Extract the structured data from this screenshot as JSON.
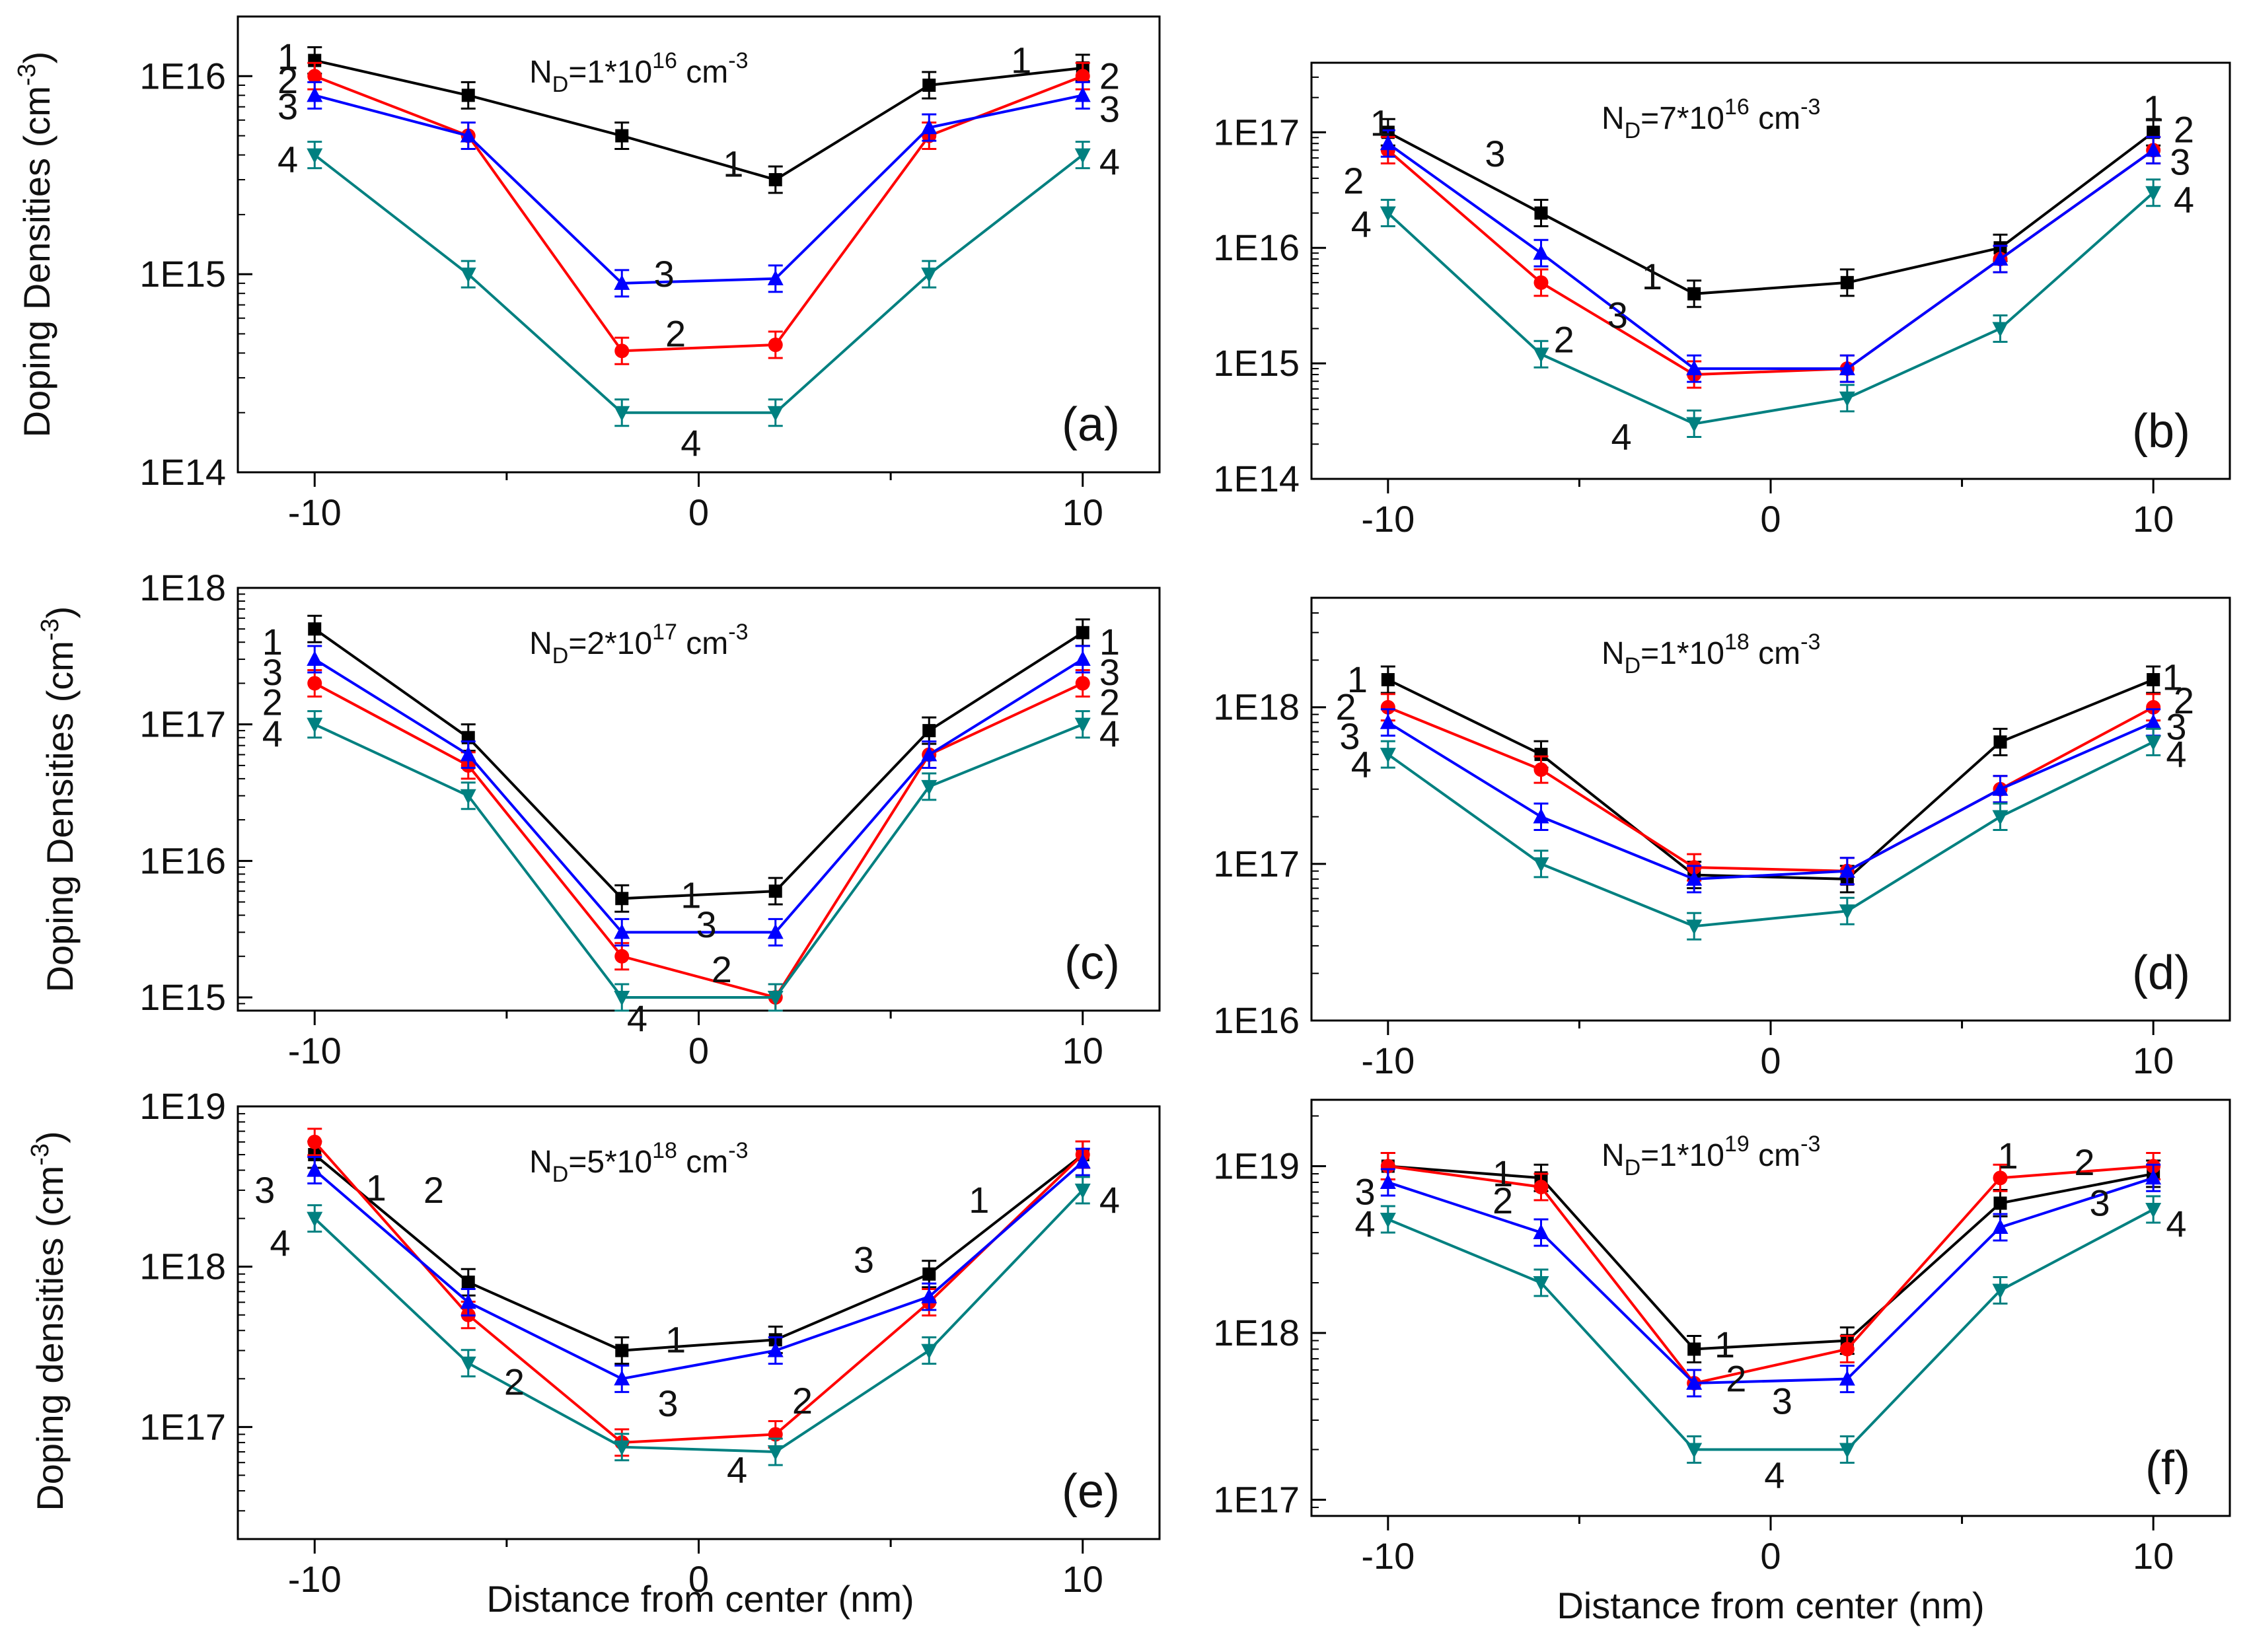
{
  "colors": {
    "1": "#000000",
    "2": "#ff0000",
    "3": "#0000ff",
    "4": "#008080"
  },
  "markers": {
    "1": "square",
    "2": "circle",
    "3": "triangle-up",
    "4": "triangle-down"
  },
  "x_axis_title": "Distance from center (nm)",
  "chart_data": [
    {
      "type": "line",
      "panel_label": "(a)",
      "annotation": {
        "base": "N",
        "sub": "D",
        "eq": "=1*10",
        "exp": "16",
        "unit": " cm",
        "unit_exp": "-3"
      },
      "ylabel": {
        "text": "Doping Densities (cm",
        "exp": "-3",
        "close": ")"
      },
      "yscale": "log",
      "ylim": [
        100000000000000.0,
        2e+16
      ],
      "yticks": [
        {
          "v": 100000000000000.0,
          "label": "1E14"
        },
        {
          "v": 1000000000000000.0,
          "label": "1E15"
        },
        {
          "v": 1e+16,
          "label": "1E16"
        }
      ],
      "xlim": [
        -12,
        12
      ],
      "xticks": [
        {
          "v": -10,
          "label": "-10"
        },
        {
          "v": 0,
          "label": "0"
        },
        {
          "v": 10,
          "label": "10"
        }
      ],
      "x": [
        -10,
        -6,
        -2,
        2,
        6,
        10
      ],
      "series": [
        {
          "name": "1",
          "values": [
            1.2e+16,
            8000000000000000.0,
            5000000000000000.0,
            3000000000000000.0,
            9000000000000000.0,
            1.1e+16
          ]
        },
        {
          "name": "2",
          "values": [
            1e+16,
            5000000000000000.0,
            410000000000000.0,
            440000000000000.0,
            5000000000000000.0,
            1e+16
          ]
        },
        {
          "name": "3",
          "values": [
            8000000000000000.0,
            5000000000000000.0,
            900000000000000.0,
            950000000000000.0,
            5500000000000000.0,
            8000000000000000.0
          ]
        },
        {
          "name": "4",
          "values": [
            4000000000000000.0,
            1000000000000000.0,
            200000000000000.0,
            200000000000000.0,
            1000000000000000.0,
            4000000000000000.0
          ]
        }
      ],
      "labels": [
        {
          "t": "1",
          "x": -10.7,
          "y": 1.25e+16,
          "c": "1"
        },
        {
          "t": "2",
          "x": -10.7,
          "y": 9500000000000000.0,
          "c": "2"
        },
        {
          "t": "3",
          "x": -10.7,
          "y": 7000000000000000.0,
          "c": "3"
        },
        {
          "t": "4",
          "x": -10.7,
          "y": 3800000000000000.0,
          "c": "4"
        },
        {
          "t": "1",
          "x": 8.4,
          "y": 1.2e+16,
          "c": "1"
        },
        {
          "t": "2",
          "x": 10.7,
          "y": 1e+16,
          "c": "2"
        },
        {
          "t": "3",
          "x": 10.7,
          "y": 6800000000000000.0,
          "c": "3"
        },
        {
          "t": "4",
          "x": 10.7,
          "y": 3700000000000000.0,
          "c": "4"
        },
        {
          "t": "1",
          "x": 0.9,
          "y": 3600000000000000.0,
          "c": "1"
        },
        {
          "t": "3",
          "x": -0.9,
          "y": 1000000000000000.0,
          "c": "3"
        },
        {
          "t": "2",
          "x": -0.6,
          "y": 500000000000000.0,
          "c": "2"
        },
        {
          "t": "4",
          "x": -0.2,
          "y": 140000000000000.0,
          "c": "4"
        }
      ]
    },
    {
      "type": "line",
      "panel_label": "(b)",
      "annotation": {
        "base": "N",
        "sub": "D",
        "eq": "=7*10",
        "exp": "16",
        "unit": " cm",
        "unit_exp": "-3"
      },
      "ylabel": null,
      "yscale": "log",
      "ylim": [
        100000000000000.0,
        4e+17
      ],
      "yticks": [
        {
          "v": 100000000000000.0,
          "label": "1E14"
        },
        {
          "v": 1000000000000000.0,
          "label": "1E15"
        },
        {
          "v": 1e+16,
          "label": "1E16"
        },
        {
          "v": 1e+17,
          "label": "1E17"
        }
      ],
      "xlim": [
        -12,
        12
      ],
      "xticks": [
        {
          "v": -10,
          "label": "-10"
        },
        {
          "v": 0,
          "label": "0"
        },
        {
          "v": 10,
          "label": "10"
        }
      ],
      "x": [
        -10,
        -6,
        -2,
        2,
        6,
        10
      ],
      "series": [
        {
          "name": "1",
          "values": [
            1e+17,
            2e+16,
            4000000000000000.0,
            5000000000000000.0,
            1e+16,
            1e+17
          ]
        },
        {
          "name": "2",
          "values": [
            7e+16,
            5000000000000000.0,
            800000000000000.0,
            900000000000000.0,
            8000000000000000.0,
            7e+16
          ]
        },
        {
          "name": "3",
          "values": [
            8e+16,
            9000000000000000.0,
            900000000000000.0,
            900000000000000.0,
            8000000000000000.0,
            7e+16
          ]
        },
        {
          "name": "4",
          "values": [
            2e+16,
            1200000000000000.0,
            300000000000000.0,
            500000000000000.0,
            2000000000000000.0,
            3e+16
          ]
        }
      ],
      "labels": [
        {
          "t": "1",
          "x": -10.2,
          "y": 1.2e+17,
          "c": "1"
        },
        {
          "t": "2",
          "x": -10.9,
          "y": 3.8e+16,
          "c": "2"
        },
        {
          "t": "4",
          "x": -10.7,
          "y": 1.6e+16,
          "c": "4"
        },
        {
          "t": "3",
          "x": -7.2,
          "y": 6.5e+16,
          "c": "3"
        },
        {
          "t": "1",
          "x": -3.1,
          "y": 5600000000000000.0,
          "c": "1"
        },
        {
          "t": "3",
          "x": -4.0,
          "y": 2600000000000000.0,
          "c": "3"
        },
        {
          "t": "2",
          "x": -5.4,
          "y": 1600000000000000.0,
          "c": "2"
        },
        {
          "t": "4",
          "x": -3.9,
          "y": 230000000000000.0,
          "c": "4"
        },
        {
          "t": "1",
          "x": 10.0,
          "y": 1.6e+17,
          "c": "1"
        },
        {
          "t": "2",
          "x": 10.8,
          "y": 1.05e+17,
          "c": "2"
        },
        {
          "t": "3",
          "x": 10.7,
          "y": 5.5e+16,
          "c": "3"
        },
        {
          "t": "4",
          "x": 10.8,
          "y": 2.6e+16,
          "c": "4"
        }
      ]
    },
    {
      "type": "line",
      "panel_label": "(c)",
      "annotation": {
        "base": "N",
        "sub": "D",
        "eq": "=2*10",
        "exp": "17",
        "unit": " cm",
        "unit_exp": "-3"
      },
      "ylabel": {
        "text": "Doping Densities (cm",
        "exp": "-3",
        "close": ")"
      },
      "yscale": "log",
      "ylim": [
        800000000000000.0,
        1e+18
      ],
      "yticks": [
        {
          "v": 1000000000000000.0,
          "label": "1E15"
        },
        {
          "v": 1e+16,
          "label": "1E16"
        },
        {
          "v": 1e+17,
          "label": "1E17"
        },
        {
          "v": 1e+18,
          "label": "1E18"
        }
      ],
      "xlim": [
        -12,
        12
      ],
      "xticks": [
        {
          "v": -10,
          "label": "-10"
        },
        {
          "v": 0,
          "label": "0"
        },
        {
          "v": 10,
          "label": "10"
        }
      ],
      "x": [
        -10,
        -6,
        -2,
        2,
        6,
        10
      ],
      "series": [
        {
          "name": "1",
          "values": [
            5e+17,
            8e+16,
            5300000000000000.0,
            6000000000000000.0,
            9e+16,
            4.7e+17
          ]
        },
        {
          "name": "2",
          "values": [
            2e+17,
            5e+16,
            2000000000000000.0,
            1000000000000000.0,
            6e+16,
            2e+17
          ]
        },
        {
          "name": "3",
          "values": [
            3e+17,
            6e+16,
            3000000000000000.0,
            3000000000000000.0,
            6e+16,
            3e+17
          ]
        },
        {
          "name": "4",
          "values": [
            1e+17,
            3e+16,
            1000000000000000.0,
            1000000000000000.0,
            3.5e+16,
            1e+17
          ]
        }
      ],
      "labels": [
        {
          "t": "1",
          "x": -11.1,
          "y": 4e+17,
          "c": "1"
        },
        {
          "t": "3",
          "x": -11.1,
          "y": 2.4e+17,
          "c": "3"
        },
        {
          "t": "2",
          "x": -11.1,
          "y": 1.45e+17,
          "c": "2"
        },
        {
          "t": "4",
          "x": -11.1,
          "y": 8.5e+16,
          "c": "4"
        },
        {
          "t": "1",
          "x": 10.7,
          "y": 4e+17,
          "c": "1"
        },
        {
          "t": "3",
          "x": 10.7,
          "y": 2.4e+17,
          "c": "3"
        },
        {
          "t": "2",
          "x": 10.7,
          "y": 1.45e+17,
          "c": "2"
        },
        {
          "t": "4",
          "x": 10.7,
          "y": 8.5e+16,
          "c": "4"
        },
        {
          "t": "1",
          "x": -0.2,
          "y": 5600000000000000.0,
          "c": "1"
        },
        {
          "t": "3",
          "x": 0.2,
          "y": 3400000000000000.0,
          "c": "3"
        },
        {
          "t": "2",
          "x": 0.6,
          "y": 1600000000000000.0,
          "c": "2"
        },
        {
          "t": "4",
          "x": -1.6,
          "y": 700000000000000.0,
          "c": "4"
        }
      ]
    },
    {
      "type": "line",
      "panel_label": "(d)",
      "annotation": {
        "base": "N",
        "sub": "D",
        "eq": "=1*10",
        "exp": "18",
        "unit": " cm",
        "unit_exp": "-3"
      },
      "ylabel": null,
      "yscale": "log",
      "ylim": [
        1e+16,
        5e+18
      ],
      "yticks": [
        {
          "v": 1e+16,
          "label": "1E16"
        },
        {
          "v": 1e+17,
          "label": "1E17"
        },
        {
          "v": 1e+18,
          "label": "1E18"
        }
      ],
      "xlim": [
        -12,
        12
      ],
      "xticks": [
        {
          "v": -10,
          "label": "-10"
        },
        {
          "v": 0,
          "label": "0"
        },
        {
          "v": 10,
          "label": "10"
        }
      ],
      "x": [
        -10,
        -6,
        -2,
        2,
        6,
        10
      ],
      "series": [
        {
          "name": "1",
          "values": [
            1.5e+18,
            5e+17,
            8.5e+16,
            8e+16,
            6e+17,
            1.5e+18
          ]
        },
        {
          "name": "2",
          "values": [
            1e+18,
            4e+17,
            9.5e+16,
            9e+16,
            3e+17,
            1e+18
          ]
        },
        {
          "name": "3",
          "values": [
            8e+17,
            2e+17,
            8e+16,
            9e+16,
            3e+17,
            8e+17
          ]
        },
        {
          "name": "4",
          "values": [
            5e+17,
            1e+17,
            4e+16,
            5e+16,
            2e+17,
            6e+17
          ]
        }
      ],
      "labels": [
        {
          "t": "1",
          "x": -10.8,
          "y": 1.5e+18,
          "c": "1"
        },
        {
          "t": "2",
          "x": -11.1,
          "y": 1e+18,
          "c": "2"
        },
        {
          "t": "3",
          "x": -11.0,
          "y": 6.5e+17,
          "c": "3"
        },
        {
          "t": "4",
          "x": -10.7,
          "y": 4.3e+17,
          "c": "4"
        },
        {
          "t": "1",
          "x": 10.5,
          "y": 1.55e+18,
          "c": "1"
        },
        {
          "t": "2",
          "x": 10.8,
          "y": 1.1e+18,
          "c": "2"
        },
        {
          "t": "3",
          "x": 10.6,
          "y": 7.5e+17,
          "c": "3"
        },
        {
          "t": "4",
          "x": 10.6,
          "y": 5e+17,
          "c": "4"
        }
      ]
    },
    {
      "type": "line",
      "panel_label": "(e)",
      "annotation": {
        "base": "N",
        "sub": "D",
        "eq": "=5*10",
        "exp": "18",
        "unit": " cm",
        "unit_exp": "-3"
      },
      "ylabel": {
        "text": "Doping densities (cm",
        "exp": "-3",
        "close": ")"
      },
      "yscale": "log",
      "ylim": [
        2e+16,
        1e+19
      ],
      "yticks": [
        {
          "v": 1e+17,
          "label": "1E17"
        },
        {
          "v": 1e+18,
          "label": "1E18"
        },
        {
          "v": 1e+19,
          "label": "1E19"
        }
      ],
      "xlim": [
        -12,
        12
      ],
      "xticks": [
        {
          "v": -10,
          "label": "-10"
        },
        {
          "v": 0,
          "label": "0"
        },
        {
          "v": 10,
          "label": "10"
        }
      ],
      "x": [
        -10,
        -6,
        -2,
        2,
        6,
        10
      ],
      "series": [
        {
          "name": "1",
          "values": [
            5e+18,
            8e+17,
            3e+17,
            3.5e+17,
            9e+17,
            5e+18
          ]
        },
        {
          "name": "2",
          "values": [
            6e+18,
            5e+17,
            8e+16,
            9e+16,
            6e+17,
            5e+18
          ]
        },
        {
          "name": "3",
          "values": [
            4e+18,
            6e+17,
            2e+17,
            3e+17,
            6.5e+17,
            4.5e+18
          ]
        },
        {
          "name": "4",
          "values": [
            2e+18,
            2.5e+17,
            7.5e+16,
            7e+16,
            3e+17,
            3e+18
          ]
        }
      ],
      "labels": [
        {
          "t": "3",
          "x": -11.3,
          "y": 3e+18,
          "c": "3"
        },
        {
          "t": "1",
          "x": -8.4,
          "y": 3.1e+18,
          "c": "1"
        },
        {
          "t": "2",
          "x": -6.9,
          "y": 3e+18,
          "c": "2"
        },
        {
          "t": "4",
          "x": -10.9,
          "y": 1.4e+18,
          "c": "4"
        },
        {
          "t": "1",
          "x": 7.3,
          "y": 2.6e+18,
          "c": "1"
        },
        {
          "t": "3",
          "x": 4.3,
          "y": 1.1e+18,
          "c": "3"
        },
        {
          "t": "1",
          "x": -0.6,
          "y": 3.5e+17,
          "c": "1"
        },
        {
          "t": "3",
          "x": -0.8,
          "y": 1.4e+17,
          "c": "3"
        },
        {
          "t": "2",
          "x": -4.8,
          "y": 1.9e+17,
          "c": "2"
        },
        {
          "t": "2",
          "x": 2.7,
          "y": 1.45e+17,
          "c": "2"
        },
        {
          "t": "4",
          "x": 1.0,
          "y": 5.4e+16,
          "c": "4"
        },
        {
          "t": "4",
          "x": 10.7,
          "y": 2.6e+18,
          "c": "4"
        }
      ]
    },
    {
      "type": "line",
      "panel_label": "(f)",
      "annotation": {
        "base": "N",
        "sub": "D",
        "eq": "=1*10",
        "exp": "19",
        "unit": " cm",
        "unit_exp": "-3"
      },
      "ylabel": null,
      "yscale": "log",
      "ylim": [
        8e+16,
        2.5e+19
      ],
      "yticks": [
        {
          "v": 1e+17,
          "label": "1E17"
        },
        {
          "v": 1e+18,
          "label": "1E18"
        },
        {
          "v": 1e+19,
          "label": "1E19"
        }
      ],
      "xlim": [
        -12,
        12
      ],
      "xticks": [
        {
          "v": -10,
          "label": "-10"
        },
        {
          "v": 0,
          "label": "0"
        },
        {
          "v": 10,
          "label": "10"
        }
      ],
      "x": [
        -10,
        -6,
        -2,
        2,
        6,
        10
      ],
      "series": [
        {
          "name": "1",
          "values": [
            1e+19,
            8.5e+18,
            8e+17,
            9e+17,
            6e+18,
            9e+18
          ]
        },
        {
          "name": "2",
          "values": [
            1e+19,
            7.5e+18,
            5e+17,
            8e+17,
            8.5e+18,
            1e+19
          ]
        },
        {
          "name": "3",
          "values": [
            8e+18,
            4e+18,
            5e+17,
            5.3e+17,
            4.3e+18,
            8.5e+18
          ]
        },
        {
          "name": "4",
          "values": [
            4.8e+18,
            2e+18,
            2e+17,
            2e+17,
            1.8e+18,
            5.5e+18
          ]
        }
      ],
      "labels": [
        {
          "t": "1",
          "x": -7.0,
          "y": 9e+18,
          "c": "1"
        },
        {
          "t": "2",
          "x": -7.0,
          "y": 6.2e+18,
          "c": "2"
        },
        {
          "t": "3",
          "x": -10.6,
          "y": 7e+18,
          "c": "3"
        },
        {
          "t": "4",
          "x": -10.6,
          "y": 4.5e+18,
          "c": "4"
        },
        {
          "t": "1",
          "x": 6.2,
          "y": 1.15e+19,
          "c": "1"
        },
        {
          "t": "2",
          "x": 8.2,
          "y": 1.05e+19,
          "c": "2"
        },
        {
          "t": "3",
          "x": 8.6,
          "y": 6e+18,
          "c": "3"
        },
        {
          "t": "4",
          "x": 10.6,
          "y": 4.5e+18,
          "c": "4"
        },
        {
          "t": "1",
          "x": -1.2,
          "y": 8.5e+17,
          "c": "1"
        },
        {
          "t": "2",
          "x": -0.9,
          "y": 5.3e+17,
          "c": "2"
        },
        {
          "t": "3",
          "x": 0.3,
          "y": 3.9e+17,
          "c": "3"
        },
        {
          "t": "4",
          "x": 0.1,
          "y": 1.4e+17,
          "c": "4"
        }
      ]
    }
  ]
}
